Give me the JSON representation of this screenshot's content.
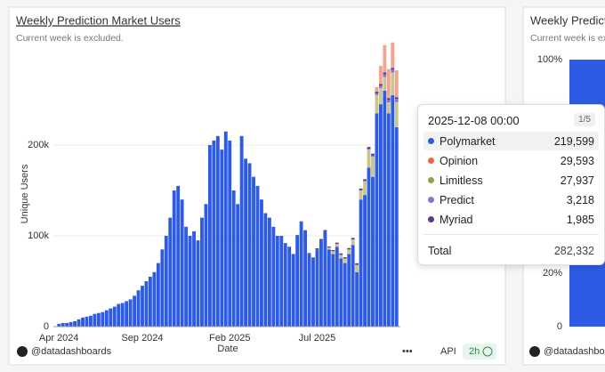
{
  "chart_data": {
    "type": "stacked-bar",
    "title": "Weekly Prediction Market Users",
    "subtitle": "Current week is excluded.",
    "ylabel": "Unique Users",
    "xlabel": "Date",
    "categories": [
      "Apr 2024",
      null,
      null,
      null,
      null,
      null,
      null,
      null,
      null,
      null,
      null,
      null,
      null,
      null,
      null,
      null,
      null,
      null,
      null,
      null,
      null,
      "Sep 2024",
      null,
      null,
      null,
      null,
      null,
      null,
      null,
      null,
      null,
      null,
      null,
      null,
      null,
      null,
      null,
      null,
      null,
      null,
      null,
      null,
      null,
      "Feb 2025",
      null,
      null,
      null,
      null,
      null,
      null,
      null,
      null,
      null,
      null,
      null,
      null,
      null,
      null,
      null,
      null,
      null,
      null,
      null,
      null,
      null,
      "Jul 2025",
      null,
      null,
      null,
      null,
      null,
      null,
      null,
      null,
      null,
      null,
      null,
      null,
      null,
      null,
      null,
      null,
      null,
      null,
      null,
      null
    ],
    "ylim": [
      0,
      300000
    ],
    "yticks": [
      0,
      {
        "value": 100000,
        "label": "100k"
      },
      {
        "value": 200000,
        "label": "200k"
      }
    ],
    "grid": true,
    "series": [
      {
        "name": "Polymarket",
        "color": "#2d5be3",
        "values": [
          3000,
          4000,
          4000,
          5000,
          6000,
          8000,
          10000,
          11000,
          12000,
          14000,
          15000,
          16000,
          18000,
          20000,
          22000,
          25000,
          26000,
          28000,
          30000,
          34000,
          40000,
          45000,
          50000,
          55000,
          60000,
          70000,
          85000,
          100000,
          120000,
          150000,
          155000,
          140000,
          110000,
          100000,
          105000,
          95000,
          120000,
          135000,
          200000,
          205000,
          210000,
          195000,
          215000,
          205000,
          150000,
          135000,
          210000,
          185000,
          180000,
          165000,
          155000,
          140000,
          125000,
          120000,
          110000,
          100000,
          100000,
          92000,
          88000,
          80000,
          100000,
          115000,
          105000,
          80000,
          75000,
          85000,
          95000,
          105000,
          85000,
          80000,
          88000,
          75000,
          70000,
          80000,
          90000,
          60000,
          140000,
          145000,
          175000,
          165000,
          235000,
          245000,
          260000,
          235000,
          255000,
          219599
        ]
      },
      {
        "name": "Limitless",
        "color": "#c9c58e",
        "values": [
          0,
          0,
          0,
          0,
          0,
          0,
          0,
          0,
          0,
          0,
          0,
          0,
          0,
          0,
          0,
          0,
          0,
          0,
          0,
          0,
          0,
          0,
          0,
          0,
          0,
          0,
          0,
          0,
          0,
          0,
          0,
          0,
          0,
          0,
          0,
          0,
          0,
          0,
          0,
          0,
          0,
          0,
          0,
          0,
          0,
          0,
          0,
          0,
          0,
          0,
          0,
          0,
          0,
          0,
          0,
          0,
          0,
          0,
          0,
          0,
          0,
          0,
          0,
          0,
          0,
          0,
          0,
          0,
          2000,
          3000,
          3000,
          4000,
          5000,
          5000,
          6000,
          8000,
          10000,
          15000,
          20000,
          22000,
          20000,
          18000,
          15000,
          12000,
          25000,
          27937
        ]
      },
      {
        "name": "Predict",
        "color": "#8b6fe0",
        "values": [
          0,
          0,
          0,
          0,
          0,
          0,
          0,
          0,
          0,
          0,
          0,
          0,
          0,
          0,
          0,
          0,
          0,
          0,
          0,
          0,
          0,
          0,
          0,
          0,
          0,
          0,
          0,
          0,
          0,
          0,
          0,
          0,
          0,
          0,
          0,
          0,
          0,
          0,
          0,
          0,
          0,
          0,
          0,
          0,
          0,
          0,
          0,
          0,
          0,
          0,
          0,
          0,
          0,
          0,
          0,
          0,
          0,
          0,
          0,
          0,
          0,
          0,
          0,
          0,
          0,
          0,
          0,
          0,
          0,
          0,
          0,
          0,
          0,
          0,
          0,
          0,
          500,
          800,
          1000,
          1500,
          2000,
          2500,
          3000,
          2800,
          3100,
          3218
        ]
      },
      {
        "name": "Myriad",
        "color": "#5b3a8c",
        "values": [
          0,
          0,
          0,
          0,
          0,
          0,
          0,
          0,
          0,
          0,
          0,
          0,
          0,
          0,
          0,
          0,
          0,
          0,
          0,
          0,
          0,
          0,
          0,
          0,
          0,
          0,
          0,
          0,
          0,
          0,
          0,
          0,
          0,
          0,
          0,
          0,
          0,
          0,
          0,
          0,
          0,
          0,
          0,
          0,
          0,
          0,
          0,
          0,
          0,
          0,
          0,
          0,
          0,
          0,
          0,
          0,
          0,
          0,
          0,
          0,
          800,
          1000,
          1200,
          1000,
          1100,
          1300,
          1500,
          1400,
          1200,
          1300,
          1500,
          1600,
          1400,
          1500,
          1700,
          1800,
          1600,
          1500,
          1900,
          2000,
          1800,
          1700,
          2100,
          2000,
          1900,
          1985
        ]
      },
      {
        "name": "Opinion",
        "color": "#f2a58e",
        "values": [
          0,
          0,
          0,
          0,
          0,
          0,
          0,
          0,
          0,
          0,
          0,
          0,
          0,
          0,
          0,
          0,
          0,
          0,
          0,
          0,
          0,
          0,
          0,
          0,
          0,
          0,
          0,
          0,
          0,
          0,
          0,
          0,
          0,
          0,
          0,
          0,
          0,
          0,
          0,
          0,
          0,
          0,
          0,
          0,
          0,
          0,
          0,
          0,
          0,
          0,
          0,
          0,
          0,
          0,
          0,
          0,
          0,
          0,
          0,
          0,
          0,
          0,
          0,
          0,
          0,
          0,
          0,
          0,
          0,
          0,
          0,
          0,
          0,
          0,
          0,
          0,
          0,
          0,
          0,
          0,
          5000,
          20000,
          30000,
          32000,
          28000,
          29593
        ]
      }
    ]
  },
  "tooltip": {
    "title": "2025-12-08 00:00",
    "page": "1/5",
    "rows": [
      {
        "name": "Polymarket",
        "value": "219,599",
        "dot": "#2d5be3"
      },
      {
        "name": "Opinion",
        "value": "29,593",
        "dot": "#e8673c"
      },
      {
        "name": "Limitless",
        "value": "27,937",
        "dot": "#9a9a4a"
      },
      {
        "name": "Predict",
        "value": "3,218",
        "dot": "#8b6fe0"
      },
      {
        "name": "Myriad",
        "value": "1,985",
        "dot": "#5b3a8c"
      }
    ],
    "total_label": "Total",
    "total": "282,332"
  },
  "footer": {
    "handle": "@datadashboards",
    "more": "•••",
    "api": "API",
    "age": "2h"
  },
  "side_panel": {
    "title": "Weekly Predictio",
    "subtitle": "Current week is ex",
    "yticks": [
      "100%",
      "20%",
      "0"
    ],
    "handle": "@datadashbo"
  }
}
